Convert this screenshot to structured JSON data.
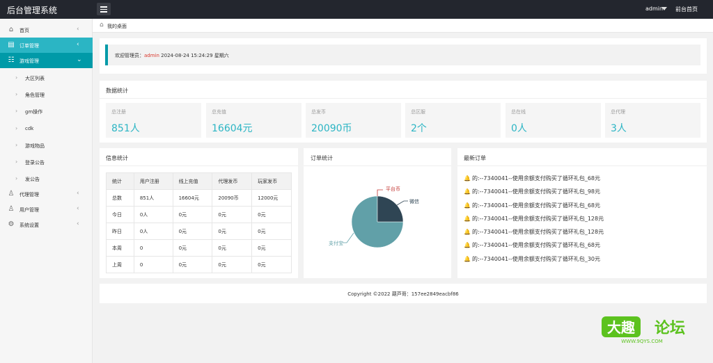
{
  "app": {
    "title": "后台管理系统",
    "user": "admin",
    "front_link": "前台首页"
  },
  "sidebar": {
    "items": [
      {
        "label": "首页",
        "icon": "home-icon"
      },
      {
        "label": "订单管理",
        "icon": "order-icon"
      },
      {
        "label": "游戏管理",
        "icon": "game-icon"
      },
      {
        "label": "代理管理",
        "icon": "user-icon"
      },
      {
        "label": "用户管理",
        "icon": "user-icon"
      },
      {
        "label": "系统设置",
        "icon": "gear-icon"
      }
    ],
    "sub_items": [
      "大区列表",
      "角色管理",
      "gm操作",
      "cdk",
      "游戏物品",
      "登录公告",
      "发公告"
    ]
  },
  "breadcrumb": {
    "label": "我的桌面"
  },
  "welcome": {
    "prefix": "欢迎管理员：",
    "user": "admin",
    "datetime": "2024-08-24  15:24:29  星期六"
  },
  "stats": {
    "title": "数据统计",
    "items": [
      {
        "label": "总注册",
        "value": "851人"
      },
      {
        "label": "总充值",
        "value": "16604元"
      },
      {
        "label": "总发币",
        "value": "20090币"
      },
      {
        "label": "总区服",
        "value": "2个"
      },
      {
        "label": "总在线",
        "value": "0人"
      },
      {
        "label": "总代理",
        "value": "3人"
      }
    ]
  },
  "info": {
    "title": "信息统计",
    "headers": [
      "统计",
      "用户注册",
      "线上充值",
      "代理发币",
      "玩家发币"
    ],
    "rows": [
      [
        "总数",
        "851人",
        "16604元",
        "20090币",
        "12000元"
      ],
      [
        "今日",
        "0人",
        "0元",
        "0元",
        "0元"
      ],
      [
        "昨日",
        "0人",
        "0元",
        "0元",
        "0元"
      ],
      [
        "本周",
        "0",
        "0元",
        "0元",
        "0元"
      ],
      [
        "上周",
        "0",
        "0元",
        "0元",
        "0元"
      ]
    ]
  },
  "order_stats": {
    "title": "订单统计",
    "labels": {
      "platform": "平台币",
      "wechat": "微信",
      "alipay": "支付宝"
    },
    "colors": {
      "alipay": "#61a0a8",
      "wechat": "#2f4554",
      "platform": "#c23531"
    }
  },
  "chart_data": {
    "type": "pie",
    "categories": [
      "支付宝",
      "微信",
      "平台币"
    ],
    "values": [
      75,
      25,
      0
    ]
  },
  "latest_orders": {
    "title": "最新订单",
    "items": [
      "的:--7340041--使用余额支付购买了循环礼包_68元",
      "的:--7340041--使用余额支付购买了循环礼包_98元",
      "的:--7340041--使用余额支付购买了循环礼包_68元",
      "的:--7340041--使用余额支付购买了循环礼包_128元",
      "的:--7340041--使用余额支付购买了循环礼包_128元",
      "的:--7340041--使用余额支付购买了循环礼包_68元",
      "的:--7340041--使用余额支付购买了循环礼包_30元"
    ]
  },
  "footer": {
    "copyright": "Copyright ©2022 葫芦哥：157ee2849eacbf86"
  },
  "watermark": {
    "brand": "大趣",
    "forum": "论坛",
    "url": "WWW.9QYS.COM"
  }
}
